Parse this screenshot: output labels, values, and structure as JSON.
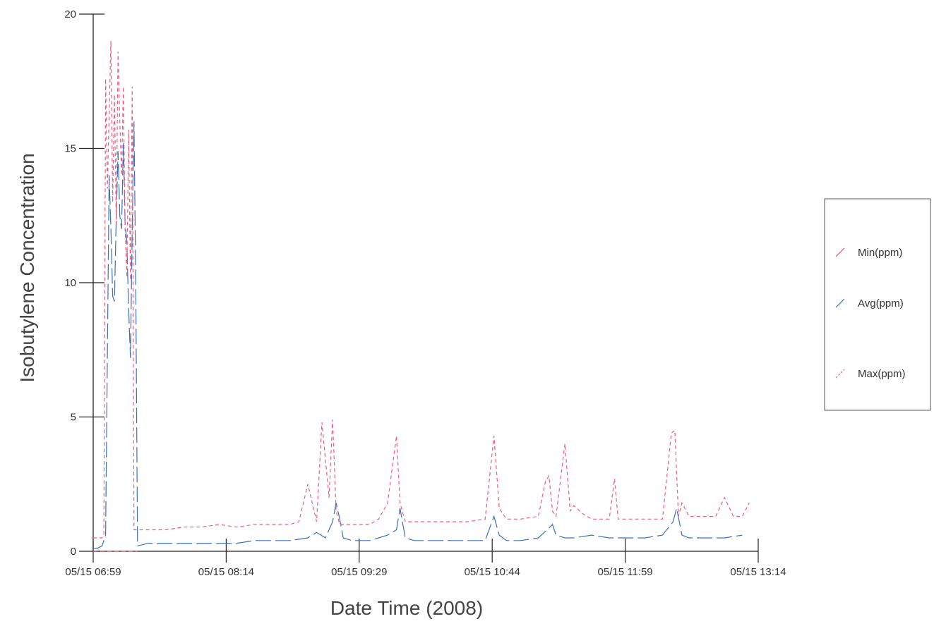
{
  "chart_data": {
    "type": "line",
    "title": "",
    "xlabel": "Date Time (2008)",
    "ylabel": "Isobutylene Concentration",
    "ylim": [
      0,
      20
    ],
    "xlim": [
      "05/15 06:59",
      "05/15 13:14"
    ],
    "x_ticks": [
      "05/15 06:59",
      "05/15 08:14",
      "05/15 09:29",
      "05/15 10:44",
      "05/15 11:59",
      "05/15 13:14"
    ],
    "y_ticks": [
      "0",
      "5",
      "10",
      "15",
      "20"
    ],
    "grid": false,
    "legend_position": "right",
    "series": [
      {
        "name": "Min(ppm)",
        "color": "#e8526f",
        "x": [
          "05/15 06:59",
          "05/15 07:04",
          "05/15 07:06",
          "05/15 07:08",
          "05/15 07:09",
          "05/15 07:11",
          "05/15 07:12",
          "05/15 07:14",
          "05/15 07:15",
          "05/15 07:17",
          "05/15 07:18",
          "05/15 07:20",
          "05/15 07:22",
          "05/15 07:23",
          "05/15 07:24"
        ],
        "y": [
          0,
          0,
          0,
          0,
          0,
          0,
          0,
          0,
          0,
          0,
          0,
          0,
          0,
          0,
          0
        ]
      },
      {
        "name": "Avg(ppm)",
        "color": "#3d6fb6",
        "x": [
          "05/15 06:59",
          "05/15 07:01",
          "05/15 07:04",
          "05/15 07:06",
          "05/15 07:08",
          "05/15 07:09",
          "05/15 07:10",
          "05/15 07:11",
          "05/15 07:12",
          "05/15 07:13",
          "05/15 07:14",
          "05/15 07:15",
          "05/15 07:16",
          "05/15 07:17",
          "05/15 07:18",
          "05/15 07:19",
          "05/15 07:20",
          "05/15 07:21",
          "05/15 07:22",
          "05/15 07:23",
          "05/15 07:24",
          "05/15 07:30",
          "05/15 07:40",
          "05/15 07:50",
          "05/15 08:00",
          "05/15 08:10",
          "05/15 08:20",
          "05/15 08:30",
          "05/15 08:40",
          "05/15 08:50",
          "05/15 09:00",
          "05/15 09:05",
          "05/15 09:10",
          "05/15 09:14",
          "05/15 09:16",
          "05/15 09:18",
          "05/15 09:20",
          "05/15 09:25",
          "05/15 09:30",
          "05/15 09:35",
          "05/15 09:40",
          "05/15 09:45",
          "05/15 09:50",
          "05/15 09:52",
          "05/15 09:55",
          "05/15 10:00",
          "05/15 10:10",
          "05/15 10:20",
          "05/15 10:30",
          "05/15 10:40",
          "05/15 10:45",
          "05/15 10:48",
          "05/15 10:52",
          "05/15 11:00",
          "05/15 11:10",
          "05/15 11:15",
          "05/15 11:18",
          "05/15 11:20",
          "05/15 11:25",
          "05/15 11:30",
          "05/15 11:40",
          "05/15 11:50",
          "05/15 12:00",
          "05/15 12:10",
          "05/15 12:20",
          "05/15 12:26",
          "05/15 12:28",
          "05/15 12:31",
          "05/15 12:35",
          "05/15 12:45",
          "05/15 12:55",
          "05/15 13:05"
        ],
        "y": [
          0.1,
          0.1,
          0.2,
          0.6,
          14,
          12,
          9.5,
          9.3,
          12.5,
          14.9,
          12.5,
          12,
          15.2,
          12.2,
          11.5,
          9,
          7.2,
          12,
          16,
          10,
          0.2,
          0.3,
          0.3,
          0.3,
          0.3,
          0.3,
          0.3,
          0.4,
          0.4,
          0.4,
          0.5,
          0.7,
          0.5,
          1.1,
          1.8,
          1.2,
          0.5,
          0.4,
          0.4,
          0.4,
          0.5,
          0.6,
          0.8,
          1.6,
          0.5,
          0.4,
          0.4,
          0.4,
          0.4,
          0.4,
          1.3,
          0.6,
          0.4,
          0.4,
          0.5,
          0.8,
          1.0,
          0.6,
          0.5,
          0.5,
          0.6,
          0.5,
          0.5,
          0.5,
          0.6,
          1.1,
          1.6,
          0.6,
          0.5,
          0.5,
          0.5,
          0.6
        ]
      },
      {
        "name": "Max(ppm)",
        "color": "#f05c7c",
        "x": [
          "05/15 06:59",
          "05/15 07:04",
          "05/15 07:05",
          "05/15 07:06",
          "05/15 07:07",
          "05/15 07:09",
          "05/15 07:10",
          "05/15 07:11",
          "05/15 07:12",
          "05/15 07:13",
          "05/15 07:14",
          "05/15 07:15",
          "05/15 07:16",
          "05/15 07:17",
          "05/15 07:18",
          "05/15 07:19",
          "05/15 07:20",
          "05/15 07:21",
          "05/15 07:22",
          "05/15 07:23",
          "05/15 07:24",
          "05/15 07:30",
          "05/15 07:40",
          "05/15 07:50",
          "05/15 08:00",
          "05/15 08:10",
          "05/15 08:20",
          "05/15 08:30",
          "05/15 08:40",
          "05/15 08:50",
          "05/15 08:55",
          "05/15 09:00",
          "05/15 09:05",
          "05/15 09:08",
          "05/15 09:12",
          "05/15 09:14",
          "05/15 09:16",
          "05/15 09:18",
          "05/15 09:20",
          "05/15 09:25",
          "05/15 09:30",
          "05/15 09:35",
          "05/15 09:40",
          "05/15 09:45",
          "05/15 09:50",
          "05/15 09:52",
          "05/15 09:55",
          "05/15 10:00",
          "05/15 10:10",
          "05/15 10:20",
          "05/15 10:30",
          "05/15 10:40",
          "05/15 10:45",
          "05/15 10:48",
          "05/15 10:52",
          "05/15 11:00",
          "05/15 11:10",
          "05/15 11:14",
          "05/15 11:16",
          "05/15 11:18",
          "05/15 11:20",
          "05/15 11:25",
          "05/15 11:28",
          "05/15 11:30",
          "05/15 11:35",
          "05/15 11:40",
          "05/15 11:50",
          "05/15 11:53",
          "05/15 11:55",
          "05/15 12:00",
          "05/15 12:10",
          "05/15 12:20",
          "05/15 12:25",
          "05/15 12:27",
          "05/15 12:29",
          "05/15 12:31",
          "05/15 12:35",
          "05/15 12:40",
          "05/15 12:45",
          "05/15 12:50",
          "05/15 12:55",
          "05/15 13:00",
          "05/15 13:05",
          "05/15 13:09"
        ],
        "y": [
          0.5,
          0.5,
          0.6,
          17.6,
          13.5,
          19.0,
          13.0,
          17.0,
          12.2,
          18.6,
          16.0,
          14.0,
          17.3,
          12.0,
          10.2,
          15.7,
          10.1,
          17.3,
          0.8,
          0.8,
          0.8,
          0.8,
          0.8,
          0.9,
          0.9,
          1.0,
          0.9,
          1.0,
          1.0,
          1.0,
          1.1,
          2.5,
          1.1,
          4.8,
          2.0,
          4.9,
          1.5,
          1.0,
          1.0,
          1.0,
          1.0,
          1.0,
          1.2,
          1.8,
          4.3,
          1.8,
          1.1,
          1.1,
          1.1,
          1.1,
          1.1,
          1.2,
          4.3,
          1.6,
          1.2,
          1.2,
          1.3,
          2.6,
          2.8,
          1.5,
          1.3,
          4.0,
          1.5,
          1.7,
          1.4,
          1.2,
          1.2,
          2.7,
          1.2,
          1.2,
          1.2,
          1.2,
          4.4,
          4.5,
          1.3,
          1.8,
          1.3,
          1.3,
          1.3,
          1.3,
          2.0,
          1.3,
          1.3,
          1.8
        ]
      }
    ]
  }
}
